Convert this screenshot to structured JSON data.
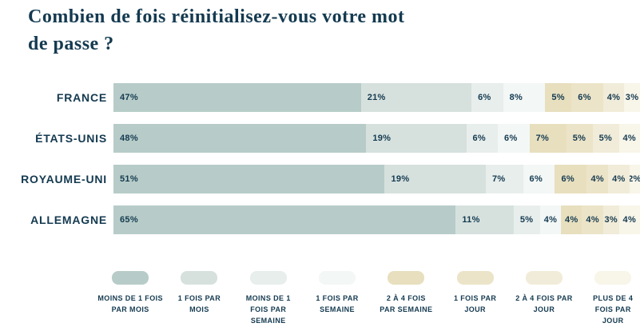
{
  "title_display": "Combien de fois réinitialisez-vous votre mot\nde passe ?",
  "colors": {
    "background": "#ffffff",
    "text": "#143a50"
  },
  "chart_data": {
    "type": "bar",
    "stacked": true,
    "orientation": "horizontal",
    "title": "Combien de fois réinitialisez-vous votre mot de passe ?",
    "unit": "%",
    "xlim": [
      0,
      100
    ],
    "grid": false,
    "legend_position": "bottom",
    "categories": [
      "FRANCE",
      "ÉTATS-UNIS",
      "ROYAUME-UNI",
      "ALLEMAGNE"
    ],
    "series": [
      {
        "name": "Moins de 1 fois par mois",
        "legend_label": "MOINS DE 1 FOIS\nPAR MOIS",
        "color": "#b7ccc8",
        "values": [
          47,
          48,
          51,
          65
        ]
      },
      {
        "name": "1 fois par mois",
        "legend_label": "1 FOIS PAR\nMOIS",
        "color": "#d6e1de",
        "values": [
          21,
          19,
          19,
          11
        ]
      },
      {
        "name": "Moins de 1 fois par semaine",
        "legend_label": "MOINS DE 1\nFOIS PAR\nSEMAINE",
        "color": "#e8eeec",
        "values": [
          6,
          6,
          7,
          5
        ]
      },
      {
        "name": "1 fois par semaine",
        "legend_label": "1 FOIS PAR\nSEMAINE",
        "color": "#f3f7f6",
        "values": [
          8,
          6,
          6,
          4
        ]
      },
      {
        "name": "2 à 4 fois par semaine",
        "legend_label": "2 À 4 FOIS\nPAR SEMAINE",
        "color": "#e7dfbe",
        "values": [
          5,
          7,
          6,
          4
        ]
      },
      {
        "name": "1 fois par jour",
        "legend_label": "1 FOIS PAR\nJOUR",
        "color": "#ece4c8",
        "values": [
          6,
          5,
          4,
          4
        ]
      },
      {
        "name": "2 à 4 fois par jour",
        "legend_label": "2 À 4 FOIS PAR\nJOUR",
        "color": "#f1ecd9",
        "values": [
          4,
          5,
          4,
          3
        ]
      },
      {
        "name": "Plus de 4 fois par jour",
        "legend_label": "PLUS DE 4\nFOIS PAR\nJOUR",
        "color": "#f8f5e9",
        "values": [
          3,
          4,
          2,
          4
        ]
      }
    ]
  }
}
